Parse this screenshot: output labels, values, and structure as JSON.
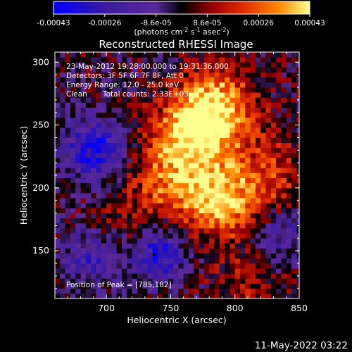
{
  "colorbar": {
    "ticks": [
      "-0.00043",
      "-0.00026",
      "-8.6e-05",
      "8.6e-05",
      "0.00026",
      "0.00043"
    ],
    "unit_main": "(photons cm",
    "unit_sup1": "-2",
    "unit_mid": " s",
    "unit_sup2": "-1",
    "unit_end": " asec",
    "unit_sup3": "-2",
    "unit_close": ")",
    "colors": [
      "#0000ff",
      "#3a1aa0",
      "#5a2a9a",
      "#000000",
      "#9a0000",
      "#e63200",
      "#ff8a00",
      "#ffff90"
    ]
  },
  "chart_data": {
    "type": "heatmap",
    "title": "Reconstructed RHESSI Image",
    "xlabel": "Heliocentric X (arcsec)",
    "ylabel": "Heliocentric Y (arcsec)",
    "xlim": [
      660,
      850
    ],
    "ylim": [
      112,
      308
    ],
    "x_ticks": [
      700,
      750,
      800,
      850
    ],
    "y_ticks": [
      150,
      200,
      250,
      300
    ],
    "x_tick_labels": [
      "700",
      "750",
      "800",
      "850"
    ],
    "y_tick_labels": [
      "150",
      "200",
      "250",
      "300"
    ],
    "colorbar_range": [
      -0.00043,
      0.00043
    ],
    "peak_position": [
      785,
      182
    ],
    "hot_regions": [
      {
        "x": 785,
        "y": 265,
        "level": 0.0004
      },
      {
        "x": 765,
        "y": 240,
        "level": 0.00032
      },
      {
        "x": 790,
        "y": 190,
        "level": 0.00036
      },
      {
        "x": 750,
        "y": 205,
        "level": 0.00022
      },
      {
        "x": 830,
        "y": 210,
        "level": 0.00018
      },
      {
        "x": 720,
        "y": 165,
        "level": 0.00015
      },
      {
        "x": 810,
        "y": 120,
        "level": 0.00012
      }
    ],
    "cold_regions": [
      {
        "x": 690,
        "y": 230,
        "level": -0.00035
      },
      {
        "x": 740,
        "y": 150,
        "level": -0.00038
      },
      {
        "x": 690,
        "y": 145,
        "level": -0.00025
      },
      {
        "x": 835,
        "y": 165,
        "level": -0.0002
      }
    ]
  },
  "annotations": {
    "time_range": "23-May-2012 19:28:00.000 to 19:31:36.000",
    "detectors": "Detectors: 3F 5F 6F 7F 8F, Att 0",
    "energy": "Energy Range: 12.0 - 25.0 keV",
    "clean": "Clean",
    "total_counts": "Total counts: 2.33E+03",
    "peak_label": "Position of Peak = [785,182]"
  },
  "footer": {
    "timestamp": "11-May-2022 03:22"
  }
}
